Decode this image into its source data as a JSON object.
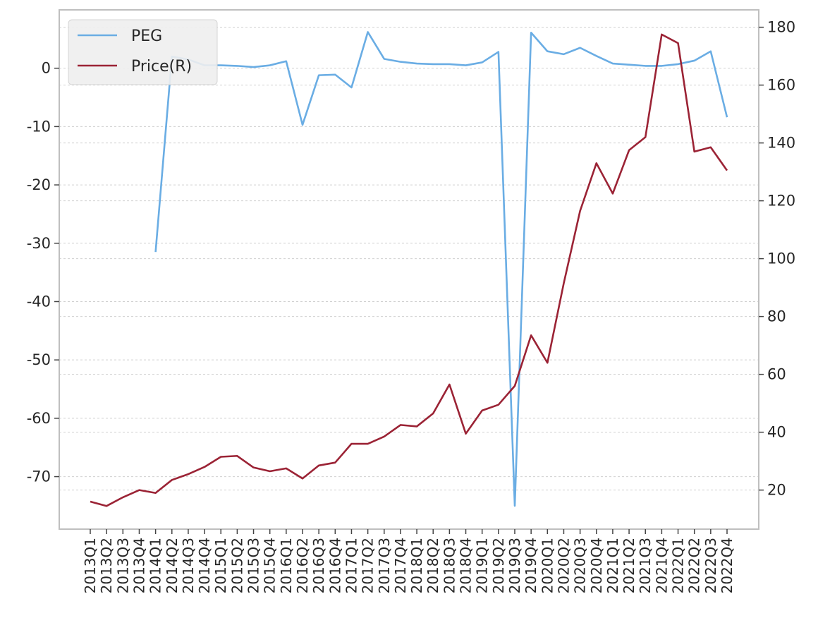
{
  "chart_data": {
    "type": "line",
    "title": "",
    "xlabel": "",
    "ylabel": "",
    "categories": [
      "2013Q1",
      "2013Q2",
      "2013Q3",
      "2013Q4",
      "2014Q1",
      "2014Q2",
      "2014Q3",
      "2014Q4",
      "2015Q1",
      "2015Q2",
      "2015Q3",
      "2015Q4",
      "2016Q1",
      "2016Q2",
      "2016Q3",
      "2016Q4",
      "2017Q1",
      "2017Q2",
      "2017Q3",
      "2017Q4",
      "2018Q1",
      "2018Q2",
      "2018Q3",
      "2018Q4",
      "2019Q1",
      "2019Q2",
      "2019Q3",
      "2019Q4",
      "2020Q1",
      "2020Q2",
      "2020Q3",
      "2020Q4",
      "2021Q1",
      "2021Q2",
      "2021Q3",
      "2021Q4",
      "2022Q1",
      "2022Q2",
      "2022Q3",
      "2022Q4"
    ],
    "y_left": {
      "ylim": [
        -79,
        10
      ],
      "ticks": [
        0,
        -10,
        -20,
        -30,
        -40,
        -50,
        -60,
        -70
      ]
    },
    "y_right": {
      "ylim": [
        6.5,
        186
      ],
      "ticks": [
        180,
        160,
        140,
        120,
        100,
        80,
        60,
        40,
        20
      ]
    },
    "grid": true,
    "legend_position": "top-left",
    "series": [
      {
        "name": "PEG",
        "axis": "left",
        "color": "#6aade4",
        "values": [
          null,
          null,
          null,
          null,
          -31.5,
          2.0,
          1.5,
          0.5,
          0.5,
          0.4,
          0.2,
          0.5,
          1.2,
          -9.7,
          -1.2,
          -1.1,
          -3.3,
          6.2,
          1.6,
          1.1,
          0.8,
          0.7,
          0.7,
          0.5,
          1.0,
          2.8,
          -75.0,
          6.1,
          2.9,
          2.4,
          3.5,
          2.1,
          0.8,
          0.6,
          0.4,
          0.4,
          0.7,
          1.3,
          2.9,
          -8.4
        ]
      },
      {
        "name": "Price(R)",
        "axis": "right",
        "color": "#9b2335",
        "values": [
          16.0,
          14.5,
          17.5,
          20.0,
          19.0,
          23.5,
          25.5,
          28.0,
          31.5,
          31.8,
          27.8,
          26.5,
          27.5,
          24.0,
          28.5,
          29.5,
          36.0,
          36.0,
          38.5,
          42.5,
          42.0,
          46.5,
          56.5,
          39.5,
          47.5,
          49.5,
          56.0,
          73.5,
          64.0,
          91.5,
          116.5,
          133.0,
          122.5,
          137.5,
          142.0,
          177.5,
          174.5,
          137.0,
          138.5,
          130.5
        ]
      }
    ]
  }
}
